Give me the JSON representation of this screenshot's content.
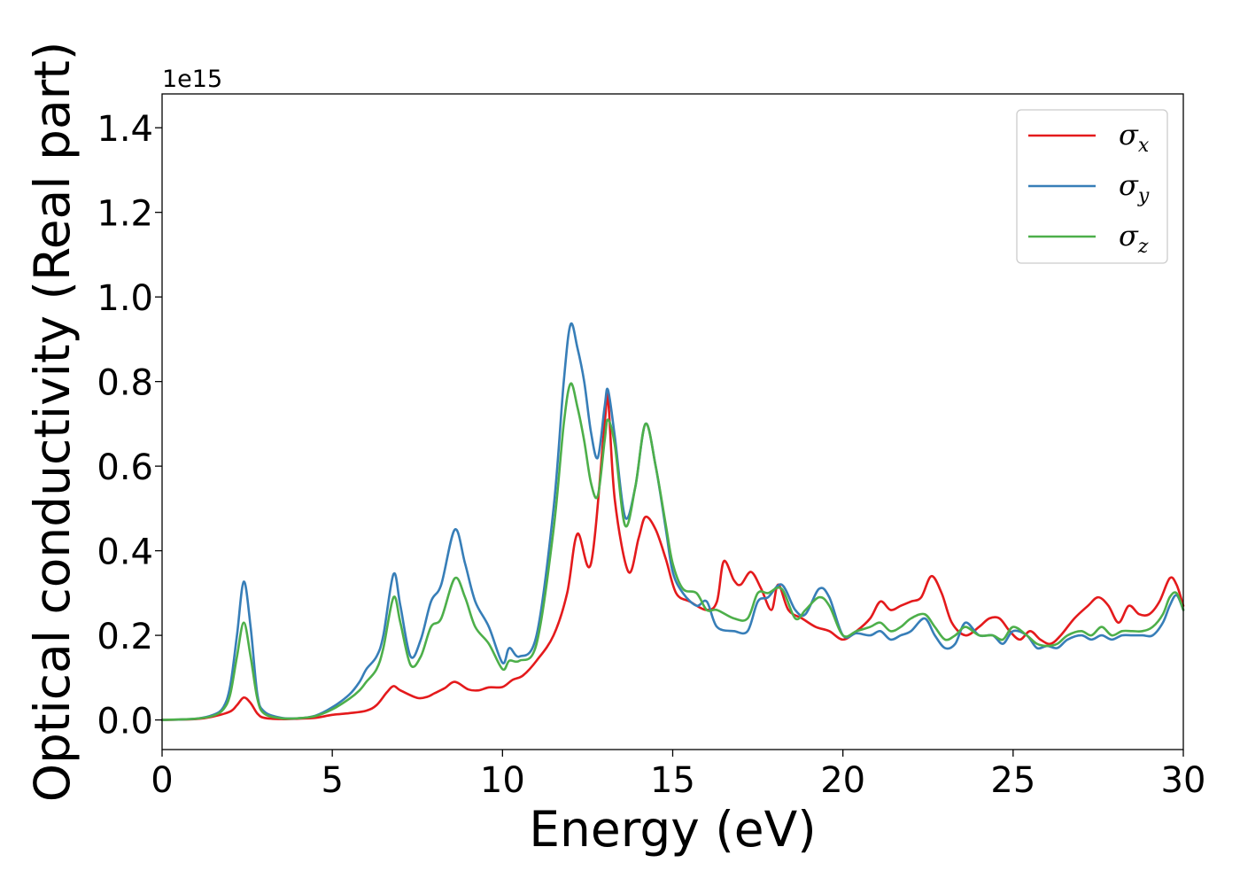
{
  "chart_data": {
    "type": "line",
    "xlabel": "Energy (eV)",
    "ylabel": "Optical conductivity (Real part)",
    "y_offset_label": "1e15",
    "xlim": [
      0,
      30
    ],
    "ylim": [
      -0.07,
      1.48
    ],
    "y_scale_factor": 1000000000000000.0,
    "x_ticks": [
      0,
      5,
      10,
      15,
      20,
      25,
      30
    ],
    "x_tick_labels": [
      "0",
      "5",
      "10",
      "15",
      "20",
      "25",
      "30"
    ],
    "y_ticks": [
      0.0,
      0.2,
      0.4,
      0.6,
      0.8,
      1.0,
      1.2,
      1.4
    ],
    "y_tick_labels": [
      "0.0",
      "0.2",
      "0.4",
      "0.6",
      "0.8",
      "1.0",
      "1.2",
      "1.4"
    ],
    "grid": false,
    "legend_position": "top-right",
    "series": [
      {
        "name": "σx",
        "legend_base": "σ",
        "legend_sub": "x",
        "color": "#e41a1c",
        "x": [
          0,
          1,
          1.5,
          2.0,
          2.2,
          2.4,
          2.6,
          2.8,
          3.0,
          3.5,
          4.0,
          4.5,
          5.0,
          5.5,
          6.0,
          6.3,
          6.6,
          6.8,
          7.0,
          7.5,
          7.8,
          8.0,
          8.3,
          8.6,
          9.0,
          9.3,
          9.6,
          10.0,
          10.3,
          10.6,
          11.0,
          11.5,
          11.9,
          12.2,
          12.6,
          13.0,
          13.1,
          13.3,
          13.7,
          14.0,
          14.2,
          14.5,
          14.8,
          15.1,
          15.5,
          16.0,
          16.3,
          16.5,
          16.8,
          17.0,
          17.3,
          17.6,
          17.9,
          18.1,
          18.4,
          18.8,
          19.2,
          19.6,
          20.0,
          20.4,
          20.8,
          21.1,
          21.4,
          21.7,
          22.0,
          22.3,
          22.6,
          22.9,
          23.2,
          23.6,
          24.0,
          24.3,
          24.6,
          24.9,
          25.2,
          25.5,
          25.8,
          26.1,
          26.4,
          26.8,
          27.2,
          27.5,
          27.8,
          28.1,
          28.4,
          28.7,
          29.0,
          29.3,
          29.6,
          29.8,
          30.0
        ],
        "y": [
          0,
          0.002,
          0.008,
          0.02,
          0.035,
          0.053,
          0.04,
          0.015,
          0.005,
          0.002,
          0.003,
          0.005,
          0.012,
          0.016,
          0.022,
          0.035,
          0.065,
          0.08,
          0.07,
          0.052,
          0.055,
          0.063,
          0.075,
          0.09,
          0.072,
          0.07,
          0.077,
          0.078,
          0.095,
          0.105,
          0.14,
          0.2,
          0.3,
          0.44,
          0.37,
          0.7,
          0.76,
          0.52,
          0.35,
          0.43,
          0.48,
          0.45,
          0.38,
          0.3,
          0.28,
          0.26,
          0.28,
          0.375,
          0.33,
          0.32,
          0.35,
          0.31,
          0.26,
          0.32,
          0.26,
          0.24,
          0.22,
          0.21,
          0.19,
          0.21,
          0.24,
          0.28,
          0.26,
          0.27,
          0.28,
          0.29,
          0.34,
          0.3,
          0.23,
          0.2,
          0.22,
          0.24,
          0.24,
          0.21,
          0.19,
          0.21,
          0.19,
          0.18,
          0.2,
          0.24,
          0.27,
          0.29,
          0.27,
          0.23,
          0.27,
          0.25,
          0.25,
          0.28,
          0.335,
          0.32,
          0.27
        ]
      },
      {
        "name": "σy",
        "legend_base": "σ",
        "legend_sub": "y",
        "color": "#377eb8",
        "x": [
          0,
          1,
          1.5,
          1.8,
          2.0,
          2.2,
          2.4,
          2.6,
          2.8,
          3.0,
          3.5,
          4.0,
          4.5,
          5.0,
          5.5,
          5.8,
          6.0,
          6.3,
          6.5,
          6.8,
          7.0,
          7.3,
          7.6,
          7.9,
          8.2,
          8.6,
          8.9,
          9.2,
          9.6,
          10.0,
          10.2,
          10.5,
          11.0,
          11.5,
          11.8,
          12.0,
          12.2,
          12.4,
          12.6,
          12.8,
          13.0,
          13.1,
          13.3,
          13.6,
          13.9,
          14.2,
          14.5,
          14.8,
          15.0,
          15.3,
          15.7,
          16.0,
          16.3,
          16.8,
          17.2,
          17.5,
          17.8,
          18.2,
          18.6,
          18.9,
          19.3,
          19.6,
          20.0,
          20.4,
          20.8,
          21.1,
          21.4,
          21.7,
          22.0,
          22.4,
          22.7,
          23.0,
          23.3,
          23.6,
          24.0,
          24.4,
          24.7,
          25.0,
          25.4,
          25.7,
          26.0,
          26.3,
          26.6,
          27.0,
          27.3,
          27.6,
          27.9,
          28.2,
          28.5,
          28.8,
          29.1,
          29.4,
          29.6,
          29.8,
          30.0
        ],
        "y": [
          0,
          0.003,
          0.012,
          0.03,
          0.08,
          0.2,
          0.327,
          0.22,
          0.06,
          0.02,
          0.005,
          0.004,
          0.01,
          0.03,
          0.06,
          0.09,
          0.12,
          0.15,
          0.2,
          0.345,
          0.27,
          0.15,
          0.19,
          0.28,
          0.32,
          0.45,
          0.37,
          0.28,
          0.22,
          0.135,
          0.17,
          0.15,
          0.2,
          0.5,
          0.8,
          0.935,
          0.88,
          0.8,
          0.68,
          0.62,
          0.74,
          0.78,
          0.67,
          0.48,
          0.55,
          0.7,
          0.6,
          0.45,
          0.35,
          0.3,
          0.27,
          0.28,
          0.22,
          0.21,
          0.21,
          0.28,
          0.29,
          0.32,
          0.26,
          0.25,
          0.31,
          0.29,
          0.2,
          0.205,
          0.2,
          0.21,
          0.19,
          0.2,
          0.21,
          0.24,
          0.2,
          0.17,
          0.18,
          0.23,
          0.2,
          0.2,
          0.18,
          0.21,
          0.2,
          0.17,
          0.175,
          0.17,
          0.19,
          0.2,
          0.19,
          0.2,
          0.19,
          0.2,
          0.2,
          0.2,
          0.2,
          0.23,
          0.27,
          0.295,
          0.26
        ]
      },
      {
        "name": "σz",
        "legend_base": "σ",
        "legend_sub": "z",
        "color": "#4daf4a",
        "x": [
          0,
          1,
          1.5,
          1.8,
          2.0,
          2.2,
          2.4,
          2.6,
          2.8,
          3.0,
          3.5,
          4.0,
          4.5,
          5.0,
          5.5,
          5.8,
          6.0,
          6.3,
          6.5,
          6.8,
          7.0,
          7.3,
          7.6,
          7.9,
          8.2,
          8.6,
          8.9,
          9.2,
          9.6,
          10.0,
          10.2,
          10.5,
          11.0,
          11.5,
          11.8,
          12.0,
          12.2,
          12.4,
          12.6,
          12.8,
          13.0,
          13.1,
          13.3,
          13.6,
          13.9,
          14.2,
          14.5,
          14.8,
          15.0,
          15.3,
          15.7,
          16.0,
          16.3,
          16.8,
          17.2,
          17.5,
          17.8,
          18.2,
          18.6,
          18.9,
          19.3,
          19.6,
          20.0,
          20.4,
          20.8,
          21.1,
          21.4,
          21.7,
          22.0,
          22.4,
          22.7,
          23.0,
          23.3,
          23.6,
          24.0,
          24.4,
          24.7,
          25.0,
          25.4,
          25.7,
          26.0,
          26.3,
          26.6,
          27.0,
          27.3,
          27.6,
          27.9,
          28.2,
          28.5,
          28.8,
          29.1,
          29.4,
          29.6,
          29.8,
          30.0
        ],
        "y": [
          0,
          0.003,
          0.01,
          0.025,
          0.06,
          0.15,
          0.23,
          0.15,
          0.05,
          0.015,
          0.004,
          0.004,
          0.009,
          0.025,
          0.05,
          0.07,
          0.09,
          0.12,
          0.17,
          0.29,
          0.23,
          0.13,
          0.15,
          0.22,
          0.24,
          0.335,
          0.29,
          0.22,
          0.18,
          0.12,
          0.14,
          0.14,
          0.18,
          0.45,
          0.7,
          0.795,
          0.74,
          0.66,
          0.56,
          0.53,
          0.66,
          0.71,
          0.65,
          0.46,
          0.55,
          0.7,
          0.6,
          0.46,
          0.37,
          0.31,
          0.3,
          0.26,
          0.26,
          0.24,
          0.24,
          0.3,
          0.3,
          0.31,
          0.24,
          0.26,
          0.29,
          0.27,
          0.2,
          0.21,
          0.22,
          0.23,
          0.21,
          0.22,
          0.24,
          0.25,
          0.22,
          0.19,
          0.2,
          0.22,
          0.2,
          0.2,
          0.19,
          0.22,
          0.2,
          0.18,
          0.175,
          0.18,
          0.2,
          0.21,
          0.2,
          0.22,
          0.2,
          0.21,
          0.21,
          0.21,
          0.22,
          0.25,
          0.29,
          0.3,
          0.26
        ]
      }
    ]
  }
}
